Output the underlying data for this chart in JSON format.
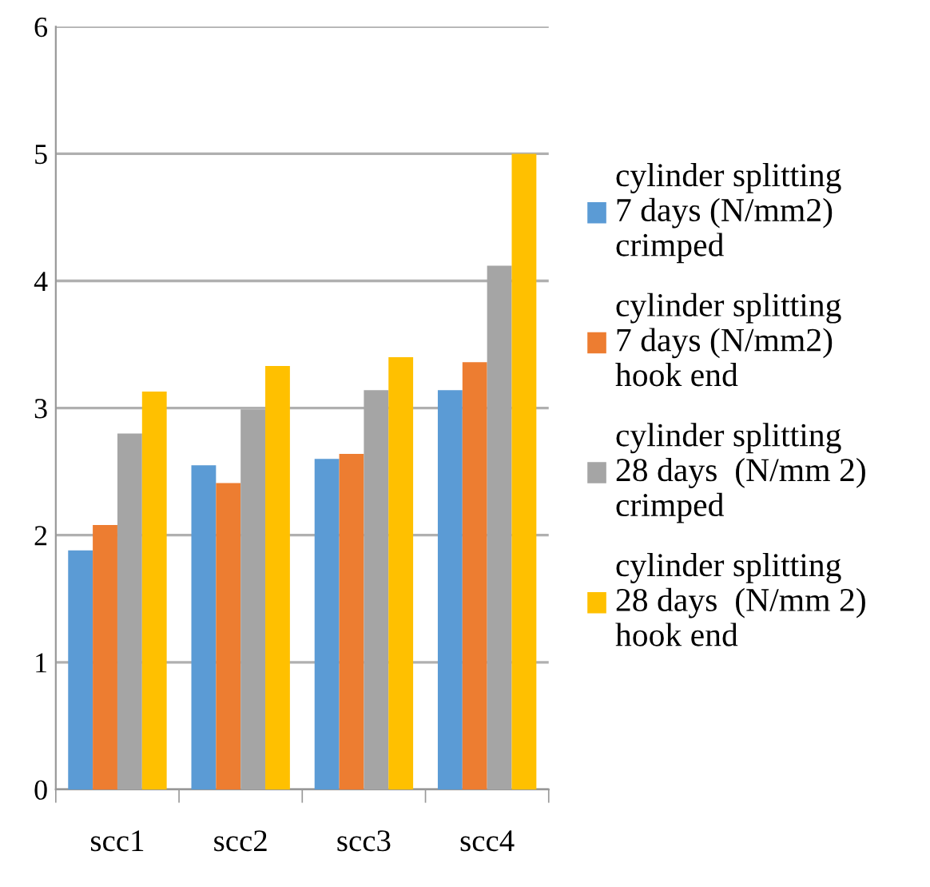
{
  "chart_data": {
    "type": "bar",
    "categories": [
      "scc1",
      "scc2",
      "scc3",
      "scc4"
    ],
    "series": [
      {
        "name": "cylinder splitting\n7 days (N/mm2)\ncrimped",
        "color": "#5b9bd5",
        "values": [
          1.88,
          2.55,
          2.6,
          3.14
        ]
      },
      {
        "name": "cylinder splitting\n7 days (N/mm2)\nhook end",
        "color": "#ed7d31",
        "values": [
          2.08,
          2.41,
          2.64,
          3.36
        ]
      },
      {
        "name": "cylinder splitting\n28 days  (N/mm 2)\ncrimped",
        "color": "#a5a5a5",
        "values": [
          2.8,
          2.99,
          3.14,
          4.12
        ]
      },
      {
        "name": "cylinder splitting\n28 days  (N/mm 2)\nhook end",
        "color": "#ffc000",
        "values": [
          3.13,
          3.33,
          3.4,
          5.0
        ]
      }
    ],
    "ylim": [
      0,
      6
    ],
    "yticks": [
      0,
      1,
      2,
      3,
      4,
      5,
      6
    ],
    "grid": "y",
    "legend": "right"
  }
}
